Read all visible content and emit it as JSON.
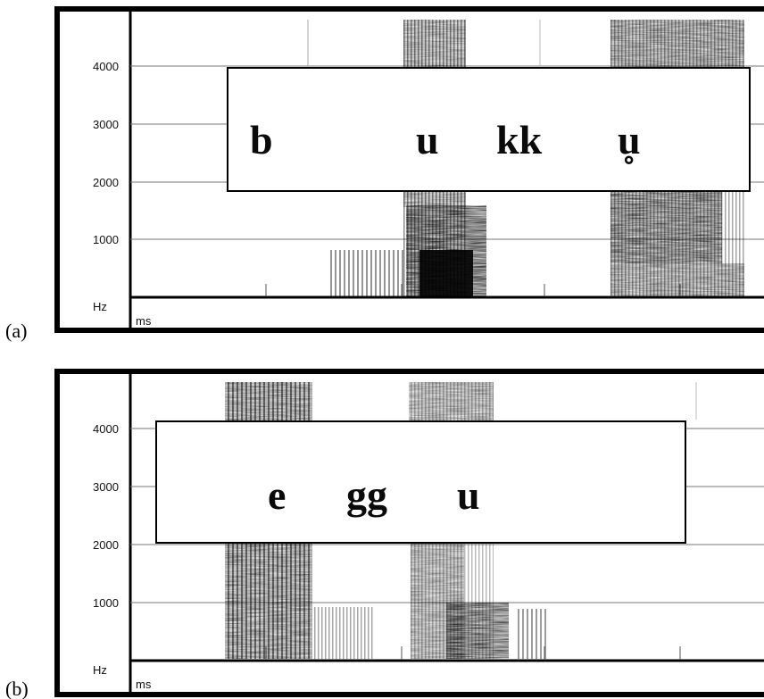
{
  "panels": [
    {
      "label": "(a)",
      "y_unit": "Hz",
      "x_unit": "ms",
      "y_ticks": [
        "4000",
        "3000",
        "2000",
        "1000"
      ],
      "segments": [
        "b",
        "u",
        "kk",
        "u̥"
      ]
    },
    {
      "label": "(b)",
      "y_unit": "Hz",
      "x_unit": "ms",
      "y_ticks": [
        "4000",
        "3000",
        "2000",
        "1000"
      ],
      "segments": [
        "e",
        "gg",
        "u"
      ]
    }
  ]
}
